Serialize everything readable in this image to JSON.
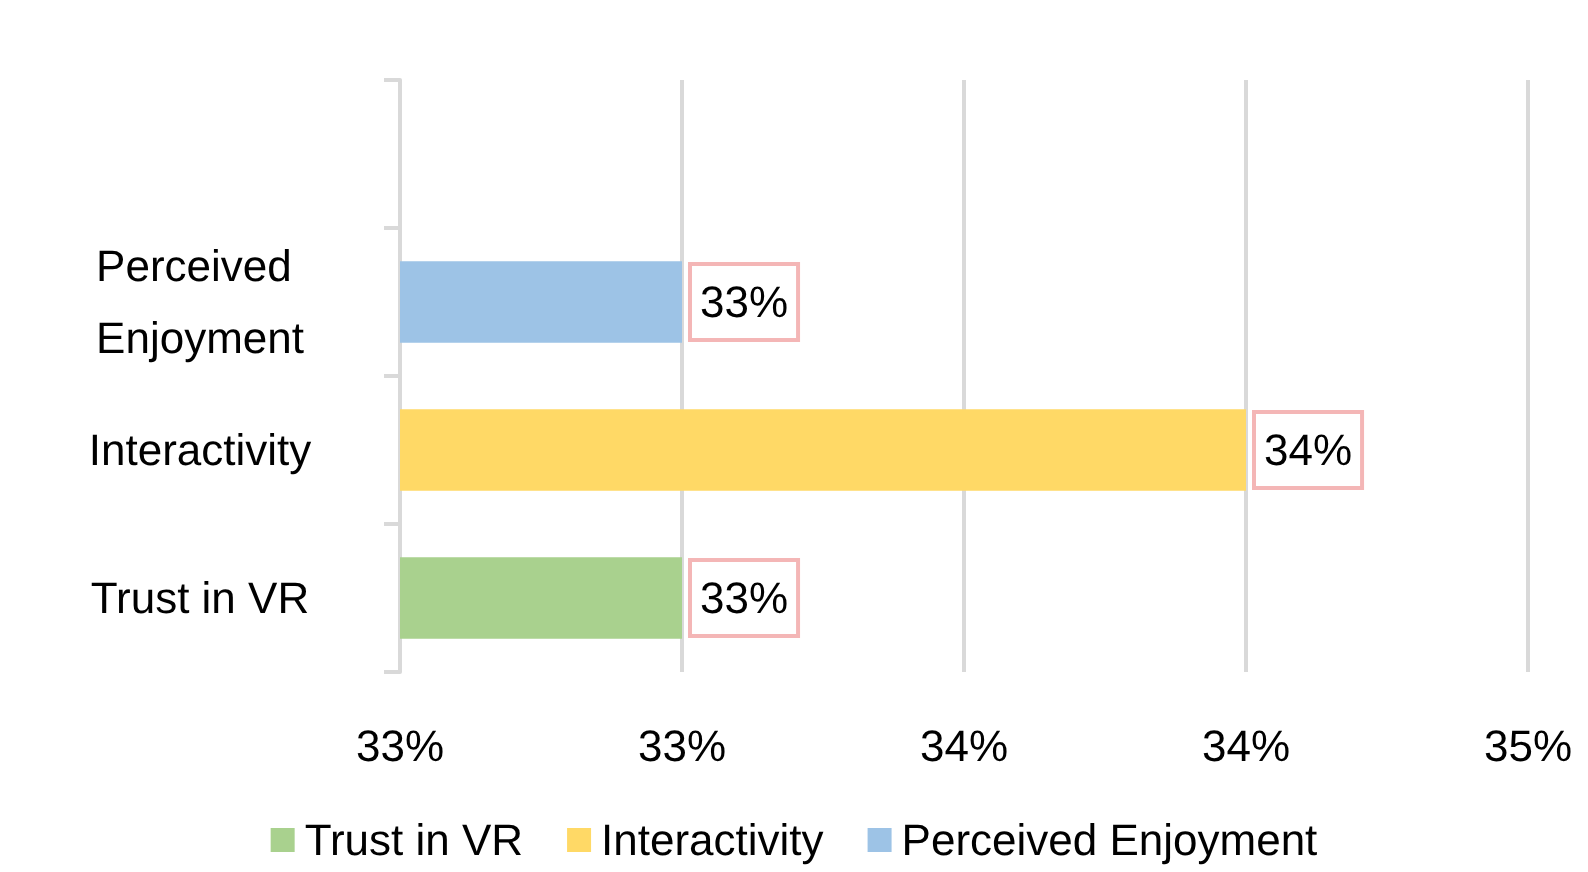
{
  "chart_data": {
    "type": "bar",
    "orientation": "horizontal",
    "stacked": true,
    "categories": [
      null,
      "Perceived Enjoyment",
      "Interactivity",
      "Trust in VR"
    ],
    "series": [
      {
        "name": "Trust in VR",
        "color": "#a9d18e",
        "values": [
          null,
          null,
          null,
          33.5
        ],
        "value_labels": [
          null,
          null,
          null,
          "33%"
        ]
      },
      {
        "name": "Interactivity",
        "color": "#ffd966",
        "values": [
          null,
          null,
          34.5,
          null
        ],
        "value_labels": [
          null,
          null,
          "34%",
          null
        ]
      },
      {
        "name": "Perceived Enjoyment",
        "color": "#9dc3e6",
        "values": [
          null,
          33.5,
          null,
          null
        ],
        "value_labels": [
          null,
          "33%",
          null,
          null
        ]
      }
    ],
    "xlim": [
      33,
      35
    ],
    "xticks": [
      {
        "value": 33,
        "label": "33%"
      },
      {
        "value": 33.5,
        "label": "33%"
      },
      {
        "value": 34,
        "label": "34%"
      },
      {
        "value": 34.5,
        "label": "34%"
      },
      {
        "value": 35,
        "label": "35%"
      }
    ],
    "grid": "x",
    "legend": "bottom"
  }
}
